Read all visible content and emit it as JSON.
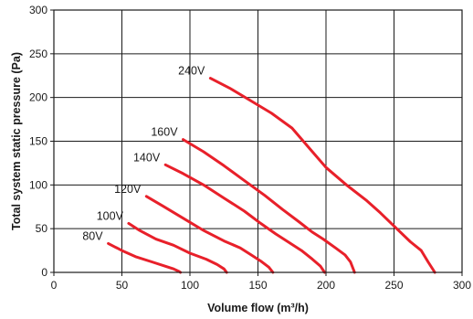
{
  "chart_data": {
    "type": "line",
    "title": "",
    "xlabel": "Volume flow (m³/h)",
    "ylabel": "Total system static pressure (Pa)",
    "xlim": [
      0,
      300
    ],
    "ylim": [
      0,
      300
    ],
    "xticks": [
      "0",
      "50",
      "100",
      "150",
      "200",
      "250",
      "300"
    ],
    "yticks": [
      "0",
      "50",
      "100",
      "150",
      "200",
      "250",
      "300"
    ],
    "grid": true,
    "legend": "inline-labels",
    "series_color": "#e8202a",
    "series": [
      {
        "name": "240V",
        "points": [
          [
            115,
            222
          ],
          [
            130,
            210
          ],
          [
            145,
            196
          ],
          [
            160,
            182
          ],
          [
            175,
            165
          ],
          [
            190,
            138
          ],
          [
            200,
            120
          ],
          [
            215,
            100
          ],
          [
            230,
            82
          ],
          [
            240,
            68
          ],
          [
            250,
            53
          ],
          [
            262,
            35
          ],
          [
            270,
            25
          ],
          [
            275,
            12
          ],
          [
            280,
            0
          ]
        ]
      },
      {
        "name": "160V",
        "points": [
          [
            95,
            152
          ],
          [
            110,
            138
          ],
          [
            125,
            122
          ],
          [
            140,
            105
          ],
          [
            155,
            88
          ],
          [
            168,
            72
          ],
          [
            180,
            58
          ],
          [
            190,
            46
          ],
          [
            198,
            38
          ],
          [
            207,
            28
          ],
          [
            214,
            20
          ],
          [
            218,
            12
          ],
          [
            221,
            0
          ]
        ]
      },
      {
        "name": "140V",
        "points": [
          [
            82,
            123
          ],
          [
            95,
            113
          ],
          [
            110,
            100
          ],
          [
            125,
            85
          ],
          [
            140,
            70
          ],
          [
            152,
            56
          ],
          [
            163,
            44
          ],
          [
            172,
            35
          ],
          [
            182,
            25
          ],
          [
            190,
            15
          ],
          [
            196,
            7
          ],
          [
            199,
            0
          ]
        ]
      },
      {
        "name": "120V",
        "points": [
          [
            68,
            87
          ],
          [
            80,
            76
          ],
          [
            95,
            62
          ],
          [
            110,
            48
          ],
          [
            125,
            36
          ],
          [
            137,
            28
          ],
          [
            145,
            20
          ],
          [
            152,
            13
          ],
          [
            158,
            6
          ],
          [
            161,
            0
          ]
        ]
      },
      {
        "name": "100V",
        "points": [
          [
            55,
            56
          ],
          [
            63,
            48
          ],
          [
            75,
            38
          ],
          [
            88,
            31
          ],
          [
            100,
            22
          ],
          [
            112,
            15
          ],
          [
            120,
            9
          ],
          [
            125,
            4
          ],
          [
            127,
            0
          ]
        ]
      },
      {
        "name": "80V",
        "points": [
          [
            40,
            33
          ],
          [
            50,
            25
          ],
          [
            60,
            18
          ],
          [
            72,
            12
          ],
          [
            82,
            7
          ],
          [
            88,
            4
          ],
          [
            92,
            1
          ],
          [
            93,
            0
          ]
        ]
      }
    ]
  }
}
